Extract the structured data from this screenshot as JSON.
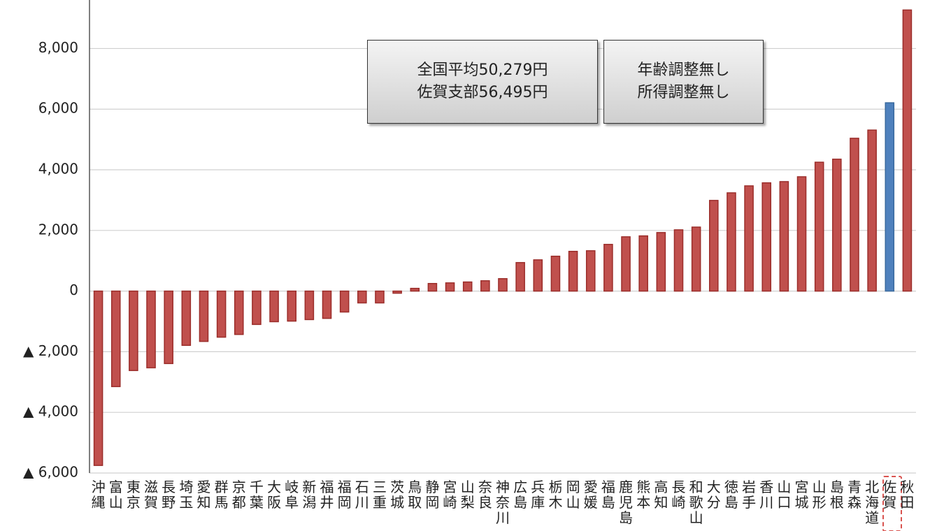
{
  "chart_data": {
    "type": "bar",
    "categories": [
      "沖縄",
      "富山",
      "東京",
      "滋賀",
      "長野",
      "埼玉",
      "愛知",
      "群馬",
      "京都",
      "千葉",
      "大阪",
      "岐阜",
      "新潟",
      "福井",
      "福岡",
      "石川",
      "三重",
      "茨城",
      "鳥取",
      "静岡",
      "宮崎",
      "山梨",
      "奈良",
      "神奈川",
      "広島",
      "兵庫",
      "栃木",
      "岡山",
      "愛媛",
      "福島",
      "鹿児島",
      "熊本",
      "高知",
      "長崎",
      "和歌山",
      "大分",
      "徳島",
      "岩手",
      "香川",
      "山口",
      "宮城",
      "山形",
      "島根",
      "青森",
      "北海道",
      "佐賀",
      "秋田"
    ],
    "values": [
      -5750,
      -3150,
      -2620,
      -2530,
      -2390,
      -1790,
      -1660,
      -1520,
      -1430,
      -1100,
      -1010,
      -990,
      -940,
      -900,
      -690,
      -390,
      -390,
      -70,
      90,
      250,
      270,
      300,
      340,
      410,
      940,
      1030,
      1150,
      1310,
      1330,
      1540,
      1790,
      1820,
      1930,
      2020,
      2110,
      2990,
      3240,
      3470,
      3570,
      3610,
      3770,
      4250,
      4350,
      5040,
      5310,
      6210,
      9270
    ],
    "colors": [
      "#c0504d",
      "#c0504d",
      "#c0504d",
      "#c0504d",
      "#c0504d",
      "#c0504d",
      "#c0504d",
      "#c0504d",
      "#c0504d",
      "#c0504d",
      "#c0504d",
      "#c0504d",
      "#c0504d",
      "#c0504d",
      "#c0504d",
      "#c0504d",
      "#c0504d",
      "#c0504d",
      "#c0504d",
      "#c0504d",
      "#c0504d",
      "#c0504d",
      "#c0504d",
      "#c0504d",
      "#c0504d",
      "#c0504d",
      "#c0504d",
      "#c0504d",
      "#c0504d",
      "#c0504d",
      "#c0504d",
      "#c0504d",
      "#c0504d",
      "#c0504d",
      "#c0504d",
      "#c0504d",
      "#c0504d",
      "#c0504d",
      "#c0504d",
      "#c0504d",
      "#c0504d",
      "#c0504d",
      "#c0504d",
      "#c0504d",
      "#c0504d",
      "#4f81bd",
      "#c0504d"
    ],
    "ylim": [
      -6000,
      9600
    ],
    "yticks": [
      {
        "value": -6000,
        "label": "▲ 6,000"
      },
      {
        "value": -4000,
        "label": "▲ 4,000"
      },
      {
        "value": -2000,
        "label": "▲ 2,000"
      },
      0,
      {
        "value": 2000,
        "label": "2,000"
      },
      {
        "value": 4000,
        "label": "4,000"
      },
      {
        "value": 6000,
        "label": "6,000"
      },
      {
        "value": 8000,
        "label": "8,000"
      }
    ],
    "grid": true,
    "annotations": [
      [
        "全国平均50,279円",
        "佐賀支部56,495円"
      ],
      [
        "年齢調整無し",
        "所得調整無し"
      ]
    ]
  }
}
